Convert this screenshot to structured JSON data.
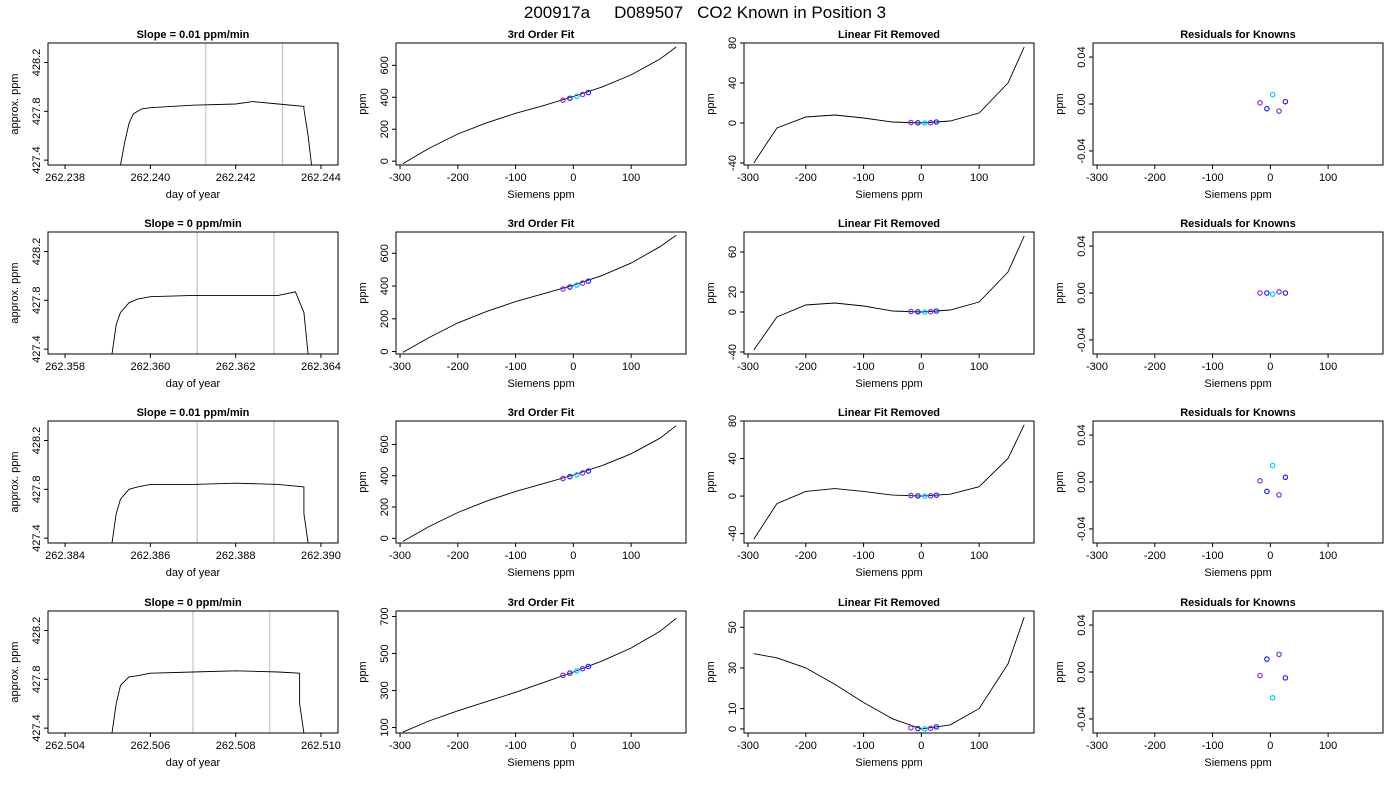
{
  "figure": {
    "run_id": "200917a",
    "tank_id": "D089507",
    "description": "CO2 Known in Position  3"
  },
  "colors": {
    "curve": "#000000",
    "marker_blue": "#2222ee",
    "marker_purple": "#8a2be2",
    "marker_cyan": "#00c8ff",
    "marker_red": "#ff2020",
    "gridline": "#c4c4c4"
  },
  "chart_data": [
    {
      "type": "line",
      "title": "Slope =  0.01  ppm/min",
      "xlabel": "day of year",
      "ylabel": "approx. ppm",
      "xlim": [
        262.2376,
        262.2444
      ],
      "ylim": [
        427.36,
        428.36
      ],
      "xticks": [
        262.238,
        262.24,
        262.242,
        262.244
      ],
      "xtick_labels": [
        "262.238",
        "262.240",
        "262.242",
        "262.244"
      ],
      "yticks": [
        427.4,
        427.8,
        428.2
      ],
      "ytick_labels": [
        "427.4",
        "427.8",
        "428.2"
      ],
      "vlines": [
        262.2413,
        262.2431
      ],
      "x": [
        262.2393,
        262.2394,
        262.2395,
        262.2396,
        262.2398,
        262.24,
        262.241,
        262.242,
        262.2424,
        262.243,
        262.2436,
        262.2436,
        262.2437,
        262.2438
      ],
      "y": [
        427.36,
        427.55,
        427.7,
        427.78,
        427.82,
        427.83,
        427.85,
        427.86,
        427.88,
        427.86,
        427.84,
        427.82,
        427.6,
        427.3
      ]
    },
    {
      "type": "line",
      "title": "3rd Order Fit",
      "xlabel": "Siemens ppm",
      "ylabel": "ppm",
      "xlim": [
        -307,
        195
      ],
      "ylim": [
        -24,
        740
      ],
      "xticks": [
        -300,
        -200,
        -100,
        0,
        100
      ],
      "xtick_labels": [
        "-300",
        "-200",
        "-100",
        "0",
        "100"
      ],
      "yticks": [
        0,
        200,
        400,
        600
      ],
      "ytick_labels": [
        "0",
        "200",
        "400",
        "600"
      ],
      "x": [
        -295,
        -250,
        -200,
        -150,
        -100,
        -50,
        0,
        50,
        100,
        150,
        178
      ],
      "y": [
        -15,
        80,
        170,
        240,
        300,
        350,
        405,
        465,
        540,
        640,
        715
      ],
      "points": {
        "x": [
          -18,
          -6,
          6,
          16,
          26
        ],
        "y": [
          382,
          394,
          406,
          418,
          430
        ]
      }
    },
    {
      "type": "line",
      "title": "Linear Fit Removed",
      "xlabel": "Siemens ppm",
      "ylabel": "ppm",
      "xlim": [
        -307,
        195
      ],
      "ylim": [
        -42,
        80
      ],
      "xticks": [
        -300,
        -200,
        -100,
        0,
        100
      ],
      "xtick_labels": [
        "-300",
        "-200",
        "-100",
        "0",
        "100"
      ],
      "yticks": [
        -40,
        0,
        40,
        80
      ],
      "ytick_labels": [
        "-40",
        "0",
        "40",
        "80"
      ],
      "x": [
        -290,
        -250,
        -200,
        -150,
        -100,
        -50,
        0,
        50,
        100,
        150,
        178
      ],
      "y": [
        -40,
        -5,
        6,
        8,
        5,
        1,
        0,
        2,
        10,
        40,
        76
      ],
      "points": {
        "x": [
          -18,
          -6,
          6,
          16,
          26
        ],
        "y": [
          0.5,
          0.2,
          0,
          0.3,
          1
        ]
      }
    },
    {
      "type": "scatter",
      "title": "Residuals for Knowns",
      "xlabel": "Siemens ppm",
      "ylabel": "ppm",
      "xlim": [
        -307,
        195
      ],
      "ylim": [
        -0.052,
        0.052
      ],
      "xticks": [
        -300,
        -200,
        -100,
        0,
        100
      ],
      "xtick_labels": [
        "-300",
        "-200",
        "-100",
        "0",
        "100"
      ],
      "yticks": [
        -0.04,
        0,
        0.04
      ],
      "ytick_labels": [
        "-0.04",
        "0.00",
        "0.04"
      ],
      "x": [
        -18,
        -6,
        4,
        15,
        26
      ],
      "y": [
        0.001,
        -0.004,
        0.008,
        -0.006,
        0.002
      ]
    },
    {
      "type": "line",
      "title": "Slope =  0  ppm/min",
      "xlabel": "day of year",
      "ylabel": "approx. ppm",
      "xlim": [
        262.3576,
        262.3644
      ],
      "ylim": [
        427.36,
        428.36
      ],
      "xticks": [
        262.358,
        262.36,
        262.362,
        262.364
      ],
      "xtick_labels": [
        "262.358",
        "262.360",
        "262.362",
        "262.364"
      ],
      "yticks": [
        427.4,
        427.8,
        428.2
      ],
      "ytick_labels": [
        "427.4",
        "427.8",
        "428.2"
      ],
      "vlines": [
        262.3611,
        262.3629
      ],
      "x": [
        262.3591,
        262.3592,
        262.3593,
        262.3595,
        262.3597,
        262.36,
        262.361,
        262.362,
        262.363,
        262.3634,
        262.3636,
        262.3637
      ],
      "y": [
        427.36,
        427.6,
        427.7,
        427.78,
        427.81,
        427.83,
        427.84,
        427.84,
        427.84,
        427.87,
        427.7,
        427.36
      ]
    },
    {
      "type": "line",
      "title": "3rd Order Fit",
      "xlabel": "Siemens ppm",
      "ylabel": "ppm",
      "xlim": [
        -307,
        195
      ],
      "ylim": [
        -15,
        730
      ],
      "xticks": [
        -300,
        -200,
        -100,
        0,
        100
      ],
      "xtick_labels": [
        "-300",
        "-200",
        "-100",
        "0",
        "100"
      ],
      "yticks": [
        0,
        200,
        400,
        600
      ],
      "ytick_labels": [
        "0",
        "200",
        "400",
        "600"
      ],
      "x": [
        -295,
        -250,
        -200,
        -150,
        -100,
        -50,
        0,
        50,
        100,
        150,
        178
      ],
      "y": [
        -5,
        85,
        175,
        245,
        305,
        355,
        405,
        465,
        540,
        640,
        710
      ],
      "points": {
        "x": [
          -18,
          -6,
          6,
          16,
          26
        ],
        "y": [
          382,
          394,
          406,
          418,
          430
        ]
      }
    },
    {
      "type": "line",
      "title": "Linear Fit Removed",
      "xlabel": "Siemens ppm",
      "ylabel": "ppm",
      "xlim": [
        -307,
        195
      ],
      "ylim": [
        -42,
        80
      ],
      "xticks": [
        -300,
        -200,
        -100,
        0,
        100
      ],
      "xtick_labels": [
        "-300",
        "-200",
        "-100",
        "0",
        "100"
      ],
      "yticks": [
        -40,
        0,
        20,
        60
      ],
      "ytick_labels": [
        "-40",
        "0",
        "20",
        "60"
      ],
      "x": [
        -290,
        -250,
        -200,
        -150,
        -100,
        -50,
        0,
        50,
        100,
        150,
        178
      ],
      "y": [
        -38,
        -5,
        7,
        9,
        6,
        1,
        0,
        2,
        10,
        40,
        76
      ],
      "points": {
        "x": [
          -18,
          -6,
          6,
          16,
          26
        ],
        "y": [
          0.5,
          0.2,
          0,
          0.3,
          1
        ]
      }
    },
    {
      "type": "scatter",
      "title": "Residuals for Knowns",
      "xlabel": "Siemens ppm",
      "ylabel": "ppm",
      "xlim": [
        -307,
        195
      ],
      "ylim": [
        -0.052,
        0.052
      ],
      "xticks": [
        -300,
        -200,
        -100,
        0,
        100
      ],
      "xtick_labels": [
        "-300",
        "-200",
        "-100",
        "0",
        "100"
      ],
      "yticks": [
        -0.04,
        0,
        0.04
      ],
      "ytick_labels": [
        "-0.04",
        "0.00",
        "0.04"
      ],
      "x": [
        -18,
        -6,
        4,
        15,
        26
      ],
      "y": [
        0,
        0,
        -0.001,
        0.001,
        0
      ]
    },
    {
      "type": "line",
      "title": "Slope =  0.01  ppm/min",
      "xlabel": "day of year",
      "ylabel": "approx. ppm",
      "xlim": [
        262.3836,
        262.3904
      ],
      "ylim": [
        427.36,
        428.36
      ],
      "xticks": [
        262.384,
        262.386,
        262.388,
        262.39
      ],
      "xtick_labels": [
        "262.384",
        "262.386",
        "262.388",
        "262.390"
      ],
      "yticks": [
        427.4,
        427.8,
        428.2
      ],
      "ytick_labels": [
        "427.4",
        "427.8",
        "428.2"
      ],
      "vlines": [
        262.3871,
        262.3889
      ],
      "x": [
        262.3851,
        262.3852,
        262.3853,
        262.3855,
        262.3857,
        262.386,
        262.387,
        262.388,
        262.389,
        262.3896,
        262.3896,
        262.3897
      ],
      "y": [
        427.36,
        427.6,
        427.72,
        427.8,
        427.82,
        427.84,
        427.84,
        427.85,
        427.84,
        427.82,
        427.6,
        427.36
      ]
    },
    {
      "type": "line",
      "title": "3rd Order Fit",
      "xlabel": "Siemens ppm",
      "ylabel": "ppm",
      "xlim": [
        -307,
        195
      ],
      "ylim": [
        -30,
        750
      ],
      "xticks": [
        -300,
        -200,
        -100,
        0,
        100
      ],
      "xtick_labels": [
        "-300",
        "-200",
        "-100",
        "0",
        "100"
      ],
      "yticks": [
        0,
        200,
        400,
        600
      ],
      "ytick_labels": [
        "0",
        "200",
        "400",
        "600"
      ],
      "x": [
        -295,
        -250,
        -200,
        -150,
        -100,
        -50,
        0,
        50,
        100,
        150,
        178
      ],
      "y": [
        -20,
        75,
        165,
        238,
        300,
        352,
        405,
        465,
        540,
        640,
        720
      ],
      "points": {
        "x": [
          -18,
          -6,
          6,
          16,
          26
        ],
        "y": [
          382,
          394,
          406,
          418,
          430
        ]
      }
    },
    {
      "type": "line",
      "title": "Linear Fit Removed",
      "xlabel": "Siemens ppm",
      "ylabel": "ppm",
      "xlim": [
        -307,
        195
      ],
      "ylim": [
        -50,
        80
      ],
      "xticks": [
        -300,
        -200,
        -100,
        0,
        100
      ],
      "xtick_labels": [
        "-300",
        "-200",
        "-100",
        "0",
        "100"
      ],
      "yticks": [
        -40,
        0,
        40,
        80
      ],
      "ytick_labels": [
        "-40",
        "0",
        "40",
        "80"
      ],
      "x": [
        -290,
        -250,
        -200,
        -150,
        -100,
        -50,
        0,
        50,
        100,
        150,
        178
      ],
      "y": [
        -46,
        -8,
        5,
        8,
        5,
        1,
        0,
        2,
        10,
        40,
        76
      ],
      "points": {
        "x": [
          -18,
          -6,
          6,
          16,
          26
        ],
        "y": [
          0.5,
          0.2,
          0,
          0.3,
          1
        ]
      }
    },
    {
      "type": "scatter",
      "title": "Residuals for Knowns",
      "xlabel": "Siemens ppm",
      "ylabel": "ppm",
      "xlim": [
        -307,
        195
      ],
      "ylim": [
        -0.052,
        0.052
      ],
      "xticks": [
        -300,
        -200,
        -100,
        0,
        100
      ],
      "xtick_labels": [
        "-300",
        "-200",
        "-100",
        "0",
        "100"
      ],
      "yticks": [
        -0.04,
        0,
        0.04
      ],
      "ytick_labels": [
        "-0.04",
        "0.00",
        "0.04"
      ],
      "x": [
        -18,
        -6,
        4,
        15,
        26
      ],
      "y": [
        0.001,
        -0.008,
        0.014,
        -0.011,
        0.004
      ]
    },
    {
      "type": "line",
      "title": "Slope =  0  ppm/min",
      "xlabel": "day of year",
      "ylabel": "approx. ppm",
      "xlim": [
        262.5036,
        262.5104
      ],
      "ylim": [
        427.36,
        428.36
      ],
      "xticks": [
        262.504,
        262.506,
        262.508,
        262.51
      ],
      "xtick_labels": [
        "262.504",
        "262.506",
        "262.508",
        "262.510"
      ],
      "yticks": [
        427.4,
        427.8,
        428.2
      ],
      "ytick_labels": [
        "427.4",
        "427.8",
        "428.2"
      ],
      "vlines": [
        262.507,
        262.5088
      ],
      "x": [
        262.5051,
        262.5052,
        262.5053,
        262.5055,
        262.5057,
        262.506,
        262.507,
        262.508,
        262.509,
        262.5095,
        262.5095,
        262.5096
      ],
      "y": [
        427.36,
        427.6,
        427.75,
        427.82,
        427.83,
        427.85,
        427.86,
        427.87,
        427.86,
        427.85,
        427.6,
        427.36
      ]
    },
    {
      "type": "line",
      "title": "3rd Order Fit",
      "xlabel": "Siemens ppm",
      "ylabel": "ppm",
      "xlim": [
        -307,
        195
      ],
      "ylim": [
        70,
        730
      ],
      "xticks": [
        -300,
        -200,
        -100,
        0,
        100
      ],
      "xtick_labels": [
        "-300",
        "-200",
        "-100",
        "0",
        "100"
      ],
      "yticks": [
        100,
        300,
        500,
        700
      ],
      "ytick_labels": [
        "100",
        "300",
        "500",
        "700"
      ],
      "x": [
        -295,
        -250,
        -200,
        -150,
        -100,
        -50,
        0,
        50,
        100,
        150,
        178
      ],
      "y": [
        75,
        135,
        190,
        240,
        290,
        345,
        400,
        460,
        530,
        620,
        690
      ],
      "points": {
        "x": [
          -18,
          -6,
          6,
          16,
          26
        ],
        "y": [
          382,
          394,
          406,
          418,
          430
        ]
      }
    },
    {
      "type": "line",
      "title": "Linear Fit Removed",
      "xlabel": "Siemens ppm",
      "ylabel": "ppm",
      "xlim": [
        -307,
        195
      ],
      "ylim": [
        -2,
        58
      ],
      "xticks": [
        -300,
        -200,
        -100,
        0,
        100
      ],
      "xtick_labels": [
        "-300",
        "-200",
        "-100",
        "0",
        "100"
      ],
      "yticks": [
        0,
        10,
        30,
        50
      ],
      "ytick_labels": [
        "0",
        "10",
        "30",
        "50"
      ],
      "x": [
        -290,
        -250,
        -200,
        -150,
        -100,
        -50,
        0,
        50,
        100,
        150,
        178
      ],
      "y": [
        37,
        35,
        30,
        22,
        13,
        5,
        0,
        2,
        10,
        32,
        55
      ],
      "points": {
        "x": [
          -18,
          -6,
          6,
          16,
          26
        ],
        "y": [
          0.5,
          0.2,
          0,
          0.3,
          1
        ]
      }
    },
    {
      "type": "scatter",
      "title": "Residuals for Knowns",
      "xlabel": "Siemens ppm",
      "ylabel": "ppm",
      "xlim": [
        -307,
        195
      ],
      "ylim": [
        -0.052,
        0.052
      ],
      "xticks": [
        -300,
        -200,
        -100,
        0,
        100
      ],
      "xtick_labels": [
        "-300",
        "-200",
        "-100",
        "0",
        "100"
      ],
      "yticks": [
        -0.04,
        0,
        0.04
      ],
      "ytick_labels": [
        "-0.04",
        "0.00",
        "0.04"
      ],
      "x": [
        -18,
        -6,
        4,
        15,
        26
      ],
      "y": [
        -0.003,
        0.011,
        -0.022,
        0.015,
        -0.005
      ]
    }
  ]
}
